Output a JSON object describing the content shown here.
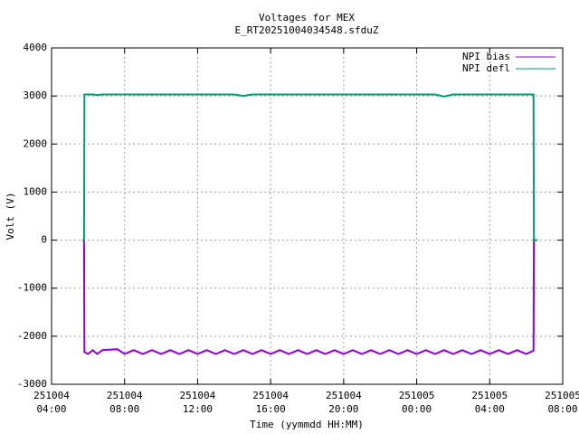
{
  "chart_data": {
    "type": "line",
    "title": "Voltages for MEX",
    "subtitle": "E_RT20251004034548.sfduZ",
    "x_label": "Time (yymmdd HH:MM)",
    "y_label": "Volt (V)",
    "xlim": [
      4,
      32
    ],
    "xticks": [
      {
        "value": 4,
        "label": "251004 04:00"
      },
      {
        "value": 8,
        "label": "251004 08:00"
      },
      {
        "value": 12,
        "label": "251004 12:00"
      },
      {
        "value": 16,
        "label": "251004 16:00"
      },
      {
        "value": 20,
        "label": "251004 20:00"
      },
      {
        "value": 24,
        "label": "251005 00:00"
      },
      {
        "value": 28,
        "label": "251005 04:00"
      },
      {
        "value": 32,
        "label": "251005 08:00"
      }
    ],
    "ylim": [
      -3000,
      4000
    ],
    "yticks": [
      -3000,
      -2000,
      -1000,
      0,
      1000,
      2000,
      3000,
      4000
    ],
    "grid": true,
    "legend": "top-right",
    "x": [
      5.7,
      5.78,
      5.8,
      6,
      6.25,
      6.5,
      6.78,
      7.6,
      8,
      8.5,
      9,
      9.5,
      10,
      10.5,
      11,
      11.5,
      12,
      12.5,
      13,
      13.5,
      14,
      14.5,
      15,
      15.5,
      16,
      16.5,
      17,
      17.5,
      18,
      18.5,
      19,
      19.5,
      20,
      20.5,
      21,
      21.5,
      22,
      22.5,
      23,
      23.5,
      24,
      24.5,
      25,
      25.5,
      26,
      26.5,
      27,
      27.5,
      28,
      28.5,
      29,
      29.5,
      30,
      30.4,
      30.42,
      30.6
    ],
    "series": [
      {
        "name": "NPI bias",
        "color": "#9400d3",
        "values": [
          0,
          0,
          -2330,
          -2370,
          -2290,
          -2370,
          -2290,
          -2270,
          -2370,
          -2290,
          -2370,
          -2290,
          -2370,
          -2290,
          -2370,
          -2290,
          -2370,
          -2290,
          -2370,
          -2290,
          -2370,
          -2290,
          -2370,
          -2290,
          -2370,
          -2290,
          -2370,
          -2290,
          -2370,
          -2290,
          -2370,
          -2290,
          -2370,
          -2290,
          -2370,
          -2290,
          -2370,
          -2290,
          -2370,
          -2290,
          -2370,
          -2290,
          -2370,
          -2290,
          -2370,
          -2290,
          -2370,
          -2290,
          -2370,
          -2290,
          -2370,
          -2290,
          -2370,
          -2300,
          0,
          0
        ]
      },
      {
        "name": "NPI defl",
        "color": "#009e73",
        "values": [
          0,
          0,
          3030,
          3030,
          3030,
          3020,
          3030,
          3030,
          3030,
          3030,
          3030,
          3030,
          3030,
          3030,
          3030,
          3030,
          3030,
          3030,
          3030,
          3030,
          3030,
          3000,
          3030,
          3030,
          3030,
          3030,
          3030,
          3030,
          3030,
          3030,
          3030,
          3030,
          3030,
          3030,
          3030,
          3030,
          3030,
          3030,
          3030,
          3030,
          3030,
          3030,
          3030,
          2990,
          3030,
          3030,
          3030,
          3030,
          3030,
          3030,
          3030,
          3030,
          3030,
          3030,
          0,
          0
        ]
      }
    ]
  }
}
